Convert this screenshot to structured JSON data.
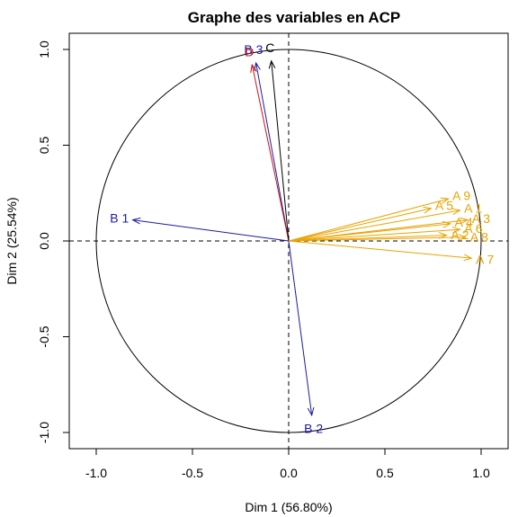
{
  "chart_data": {
    "type": "scatter",
    "title": "Graphe des variables en ACP",
    "xlabel": "Dim 1 (56.80%)",
    "ylabel": "Dim 2 (25.54%)",
    "xlim": [
      -1.1,
      1.1
    ],
    "ylim": [
      -1.05,
      1.05
    ],
    "xticks": [
      -1.0,
      -0.5,
      0.0,
      0.5,
      1.0
    ],
    "yticks": [
      -1.0,
      -0.5,
      0.0,
      0.5,
      1.0
    ],
    "tick_labels_x": [
      "-1.0",
      "-0.5",
      "0.0",
      "0.5",
      "1.0"
    ],
    "tick_labels_y": [
      "-1.0",
      "-0.5",
      "0.0",
      "0.5",
      "1.0"
    ],
    "grid": false,
    "circle_radius": 1,
    "colors": {
      "A": "#E8A400",
      "B": "#1A1AA6",
      "C": "#000000",
      "D": "#CC1111"
    },
    "vectors": [
      {
        "label": "B 3",
        "group": "B",
        "x": -0.17,
        "y": 0.93
      },
      {
        "label": "D",
        "group": "D",
        "x": -0.19,
        "y": 0.92
      },
      {
        "label": "C",
        "group": "C",
        "x": -0.09,
        "y": 0.94
      },
      {
        "label": "B 1",
        "group": "B",
        "x": -0.81,
        "y": 0.11
      },
      {
        "label": "B 2",
        "group": "B",
        "x": 0.12,
        "y": -0.91
      },
      {
        "label": "A 9",
        "group": "A",
        "x": 0.83,
        "y": 0.22
      },
      {
        "label": "A 5",
        "group": "A",
        "x": 0.74,
        "y": 0.17
      },
      {
        "label": "A 1",
        "group": "A",
        "x": 0.89,
        "y": 0.16
      },
      {
        "label": "A 3",
        "group": "A",
        "x": 0.93,
        "y": 0.11
      },
      {
        "label": "A 4",
        "group": "A",
        "x": 0.84,
        "y": 0.09
      },
      {
        "label": "A 6",
        "group": "A",
        "x": 0.89,
        "y": 0.06
      },
      {
        "label": "A 2",
        "group": "A",
        "x": 0.82,
        "y": 0.03
      },
      {
        "label": "A 8",
        "group": "A",
        "x": 0.92,
        "y": 0.02
      },
      {
        "label": "A 7",
        "group": "A",
        "x": 0.95,
        "y": -0.09
      }
    ]
  }
}
